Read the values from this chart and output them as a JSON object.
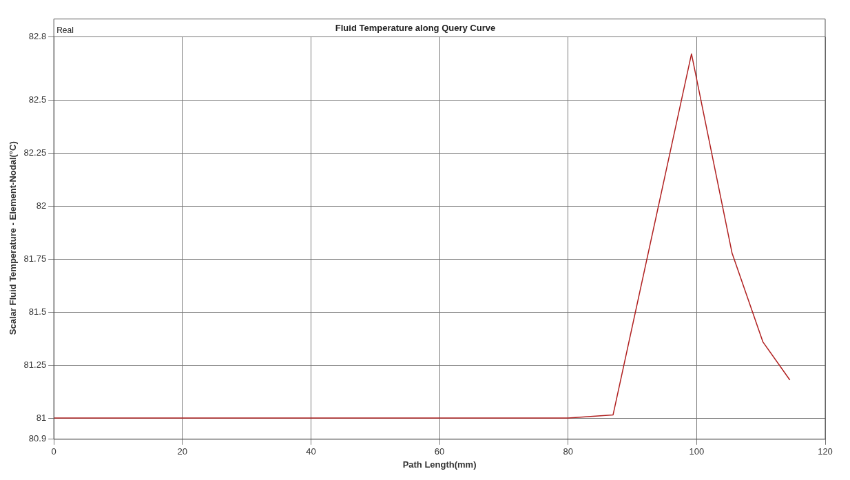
{
  "chart_data": {
    "type": "line",
    "title": "Fluid Temperature along Query Curve",
    "xlabel": "Path Length(mm)",
    "ylabel": "Scalar Fluid Temperature - Element-Nodal(°C)",
    "annotations": [
      "Real"
    ],
    "x": [
      0,
      80,
      87,
      99.2,
      105.5,
      110.3,
      114.5
    ],
    "series": [
      {
        "color": "#b02020",
        "values": [
          81,
          81,
          81.015,
          82.72,
          81.78,
          81.36,
          81.18
        ]
      }
    ],
    "xlim": [
      0,
      120
    ],
    "xticks": [
      0,
      20,
      40,
      60,
      80,
      100,
      120
    ],
    "ylim": [
      80.9,
      82.8
    ],
    "yticks": [
      80.9,
      81,
      81.25,
      81.5,
      81.75,
      82,
      82.25,
      82.5,
      82.8
    ],
    "grid": true,
    "legend": false,
    "marker": "none",
    "line_style": "solid"
  }
}
